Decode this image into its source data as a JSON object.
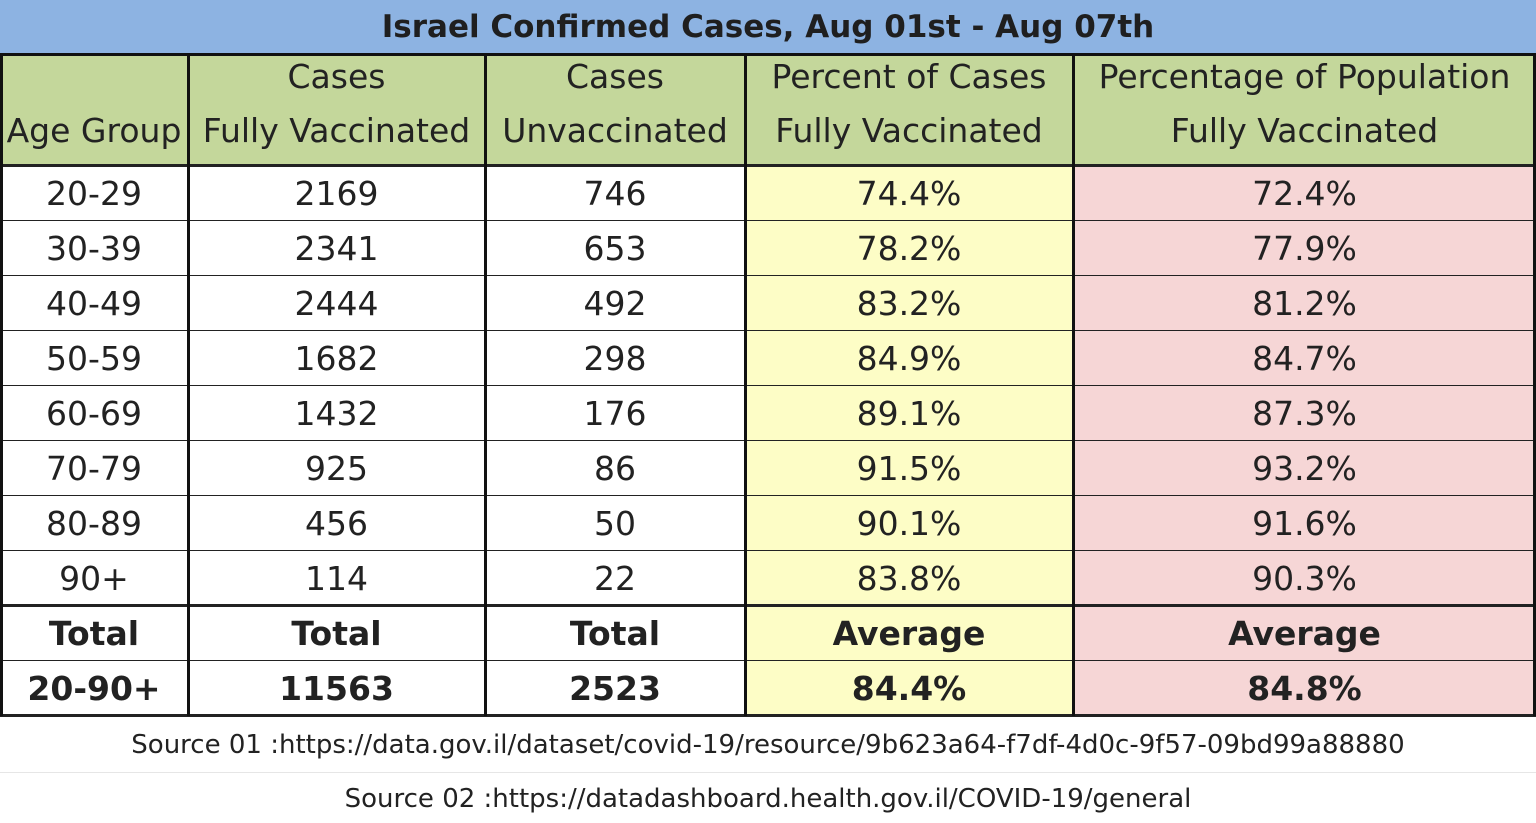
{
  "title": "Israel Confirmed Cases, Aug 01st  - Aug 07th",
  "table": {
    "headers": [
      [
        "Age Group"
      ],
      [
        "Cases",
        "Fully Vaccinated"
      ],
      [
        "Cases",
        "Unvaccinated"
      ],
      [
        "Percent of Cases",
        "Fully Vaccinated"
      ],
      [
        "Percentage of Population",
        "Fully Vaccinated"
      ]
    ],
    "rows": [
      [
        "20-29",
        "2169",
        "746",
        "74.4%",
        "72.4%"
      ],
      [
        "30-39",
        "2341",
        "653",
        "78.2%",
        "77.9%"
      ],
      [
        "40-49",
        "2444",
        "492",
        "83.2%",
        "81.2%"
      ],
      [
        "50-59",
        "1682",
        "298",
        "84.9%",
        "84.7%"
      ],
      [
        "60-69",
        "1432",
        "176",
        "89.1%",
        "87.3%"
      ],
      [
        "70-79",
        "925",
        "86",
        "91.5%",
        "93.2%"
      ],
      [
        "80-89",
        "456",
        "50",
        "90.1%",
        "91.6%"
      ],
      [
        "90+",
        "114",
        "22",
        "83.8%",
        "90.3%"
      ]
    ],
    "summary_labels": [
      "Total",
      "Total",
      "Total",
      "Average",
      "Average"
    ],
    "summary_values": [
      "20-90+",
      "11563",
      "2523",
      "84.4%",
      "84.8%"
    ]
  },
  "sources": [
    "Source 01  :https://data.gov.il/dataset/covid-19/resource/9b623a64-f7df-4d0c-9f57-09bd99a88880",
    "Source 02  :https://datadashboard.health.gov.il/COVID-19/general"
  ]
}
